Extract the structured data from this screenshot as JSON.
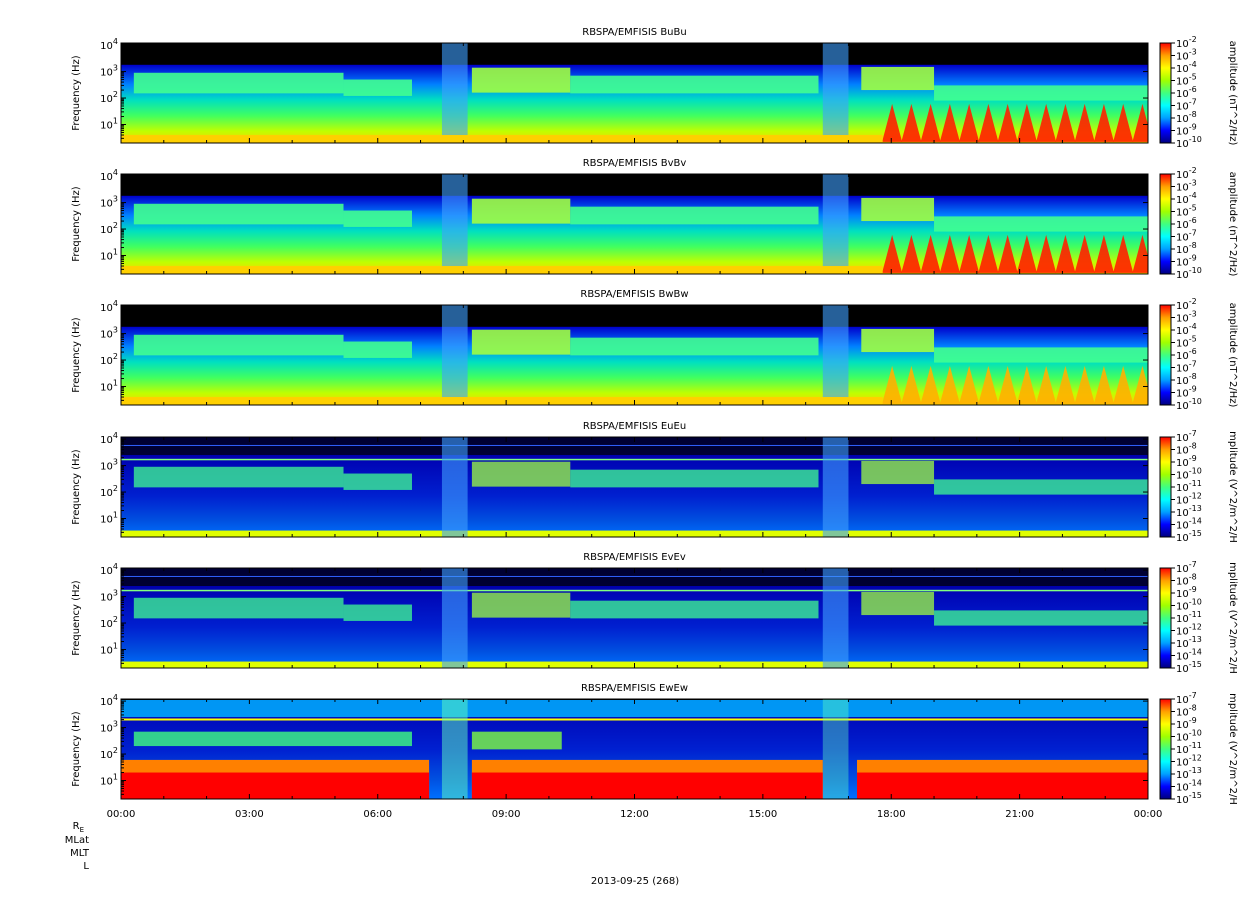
{
  "date_label": "2013-09-25 (268)",
  "ephemeris_labels": {
    "re": "R",
    "re_sub": "E",
    "mlat": "MLat",
    "mlt": "MLT",
    "l": "L"
  },
  "chart_data": {
    "type": "heatmap",
    "x_ticks": [
      "00:00",
      "03:00",
      "06:00",
      "09:00",
      "12:00",
      "15:00",
      "18:00",
      "21:00",
      "00:00"
    ],
    "x_range_hours": [
      0,
      24
    ],
    "y_scale": "log",
    "y_range_hz": [
      2,
      12000
    ],
    "y_ticks": [
      {
        "base": "10",
        "exp": "1"
      },
      {
        "base": "10",
        "exp": "2"
      },
      {
        "base": "10",
        "exp": "3"
      },
      {
        "base": "10",
        "exp": "4"
      }
    ],
    "colormap": [
      "#00007f",
      "#0000ff",
      "#00a0ff",
      "#00ffff",
      "#40ff80",
      "#a0ff00",
      "#ffff00",
      "#ffa000",
      "#ff0000"
    ],
    "panels": [
      {
        "title": "RBSPA/EMFISIS  BuBu",
        "ylabel": "Frequency (Hz)",
        "cb_label": "amplitude (nT^2/Hz)",
        "cb_exps": [
          "-2",
          "-3",
          "-4",
          "-5",
          "-6",
          "-7",
          "-8",
          "-9",
          "-10"
        ]
      },
      {
        "title": "RBSPA/EMFISIS  BvBv",
        "ylabel": "Frequency (Hz)",
        "cb_label": "amplitude (nT^2/Hz)",
        "cb_exps": [
          "-2",
          "-3",
          "-4",
          "-5",
          "-6",
          "-7",
          "-8",
          "-9",
          "-10"
        ]
      },
      {
        "title": "RBSPA/EMFISIS  BwBw",
        "ylabel": "Frequency (Hz)",
        "cb_label": "amplitude (nT^2/Hz)",
        "cb_exps": [
          "-2",
          "-3",
          "-4",
          "-5",
          "-6",
          "-7",
          "-8",
          "-9",
          "-10"
        ]
      },
      {
        "title": "RBSPA/EMFISIS  EuEu",
        "ylabel": "Frequency (Hz)",
        "cb_label": "mplitude (V^2/m^2/H",
        "cb_exps": [
          "-7",
          "-8",
          "-9",
          "-10",
          "-11",
          "-12",
          "-13",
          "-14",
          "-15"
        ]
      },
      {
        "title": "RBSPA/EMFISIS  EvEv",
        "ylabel": "Frequency (Hz)",
        "cb_label": "mplitude (V^2/m^2/H",
        "cb_exps": [
          "-7",
          "-8",
          "-9",
          "-10",
          "-11",
          "-12",
          "-13",
          "-14",
          "-15"
        ]
      },
      {
        "title": "RBSPA/EMFISIS  EwEw",
        "ylabel": "Frequency (Hz)",
        "cb_label": "mplitude (V^2/m^2/H",
        "cb_exps": [
          "-7",
          "-8",
          "-9",
          "-10",
          "-11",
          "-12",
          "-13",
          "-14",
          "-15"
        ]
      }
    ]
  }
}
